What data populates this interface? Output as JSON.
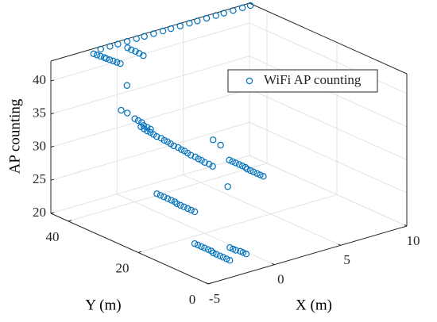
{
  "chart_data": {
    "type": "scatter3d",
    "xlabel": "X (m)",
    "ylabel": "Y (m)",
    "zlabel": "AP counting",
    "xlim": [
      -5,
      10
    ],
    "ylim": [
      0,
      45
    ],
    "zlim": [
      20,
      43
    ],
    "xticks": [
      -5,
      0,
      5,
      10
    ],
    "yticks": [
      0,
      20,
      40
    ],
    "zticks": [
      20,
      25,
      30,
      35,
      40
    ],
    "grid": true,
    "legend_position": "northeast",
    "series": [
      {
        "name": "WiFi AP counting",
        "color": "#0072bd",
        "x": [
          -1.5,
          -0.8,
          -0.2,
          0.5,
          1.2,
          1.8,
          2.5,
          3.2,
          3.8,
          4.5,
          5.2,
          5.8,
          6.5,
          7.2,
          7.8,
          8.5,
          9.2,
          9.8,
          -2.3,
          -2.2,
          -2.1,
          -2.0,
          -2.0,
          -1.9,
          -1.8,
          -1.7,
          -1.6,
          0,
          0.1,
          0.2,
          0.3,
          0.4,
          -1.1,
          -1.8,
          -1.6,
          -1.3,
          -1.2,
          -1.1,
          -1.1,
          -1.0,
          -0.9,
          -1.1,
          -1.1,
          -1.1,
          -1.1,
          -1.1,
          -1.1,
          -1.0,
          -1.0,
          -1.0,
          -1.0,
          -1.0,
          -0.9,
          -0.9,
          -0.9,
          -0.9,
          -0.9,
          -0.8,
          -0.8,
          -0.8,
          -0.8,
          -0.7,
          -0.7,
          2.5,
          2.3,
          3.2,
          3.2,
          3.2,
          3.2,
          3.2,
          3.2,
          3.1,
          3.1,
          3.1,
          3.1,
          3.1,
          3.1,
          1.1,
          0.5,
          0.5,
          0.5,
          0.5,
          0.5,
          0.5,
          0.4,
          0.4,
          0.4,
          0.4,
          0.4,
          0.4,
          -1.5,
          -1.5,
          -1.5,
          -1.5,
          -1.5,
          -1.5,
          -1.6,
          -1.6,
          -1.6,
          -1.6,
          -1.6,
          -1.6,
          -0.3,
          -0.3,
          -0.3,
          -0.2,
          -0.2,
          -0.2
        ],
        "y": [
          44,
          44,
          44,
          44,
          44,
          44,
          44,
          44,
          44,
          44,
          44,
          44,
          44,
          44,
          44,
          44,
          44,
          44,
          43,
          42.4,
          41.8,
          41.1,
          40.5,
          39.9,
          39.3,
          38.6,
          38,
          42,
          41.3,
          40.5,
          39.8,
          39,
          38,
          37,
          36,
          35,
          34.4,
          33.8,
          33.2,
          32.6,
          32,
          34,
          33.1,
          32.2,
          31.3,
          30.4,
          29.5,
          28.6,
          27.7,
          26.8,
          25.9,
          25,
          24.1,
          23.2,
          22.3,
          21.4,
          20.5,
          19.6,
          18.7,
          17.8,
          16.9,
          16,
          15,
          27,
          24.1,
          25,
          24.1,
          23.2,
          22.2,
          21.3,
          20.4,
          19.5,
          18.6,
          17.7,
          16.7,
          15.8,
          14.9,
          17.5,
          35.5,
          34.5,
          33.5,
          32.4,
          31.4,
          30.4,
          29.4,
          28.4,
          27.4,
          26.3,
          25.3,
          24.3,
          17.1,
          16.2,
          15.2,
          14.3,
          13.3,
          12.4,
          11.4,
          10.5,
          9.5,
          8.6,
          7.6,
          6.7,
          11.6,
          10.7,
          9.9,
          9.0,
          8.2,
          7.3
        ],
        "z": [
          43,
          43,
          43,
          43,
          43,
          43,
          43,
          43,
          43,
          43,
          43,
          43,
          43,
          43,
          43,
          43,
          43,
          43,
          43,
          42.9,
          42.8,
          42.7,
          42.7,
          42.6,
          42.5,
          42.4,
          42.3,
          42.8,
          42.6,
          42.5,
          42.3,
          42.1,
          38.7,
          35.6,
          35.3,
          34.5,
          34.3,
          34.1,
          33.8,
          33.6,
          33.4,
          33.4,
          33.3,
          33.2,
          33.2,
          33.1,
          33.0,
          32.9,
          32.8,
          32.8,
          32.7,
          32.6,
          32.5,
          32.4,
          32.4,
          32.3,
          32.2,
          32.1,
          32.0,
          32.0,
          31.9,
          31.8,
          31.7,
          31,
          31,
          28,
          28,
          28,
          28,
          28,
          28,
          28,
          28,
          28,
          28,
          28,
          28,
          27,
          22,
          22,
          22,
          22,
          22,
          22,
          22,
          22,
          22,
          22,
          22,
          22,
          20,
          20,
          20,
          20,
          20,
          20,
          20,
          20,
          20,
          20,
          20,
          20,
          20,
          20,
          20,
          20,
          20,
          20
        ]
      }
    ]
  }
}
